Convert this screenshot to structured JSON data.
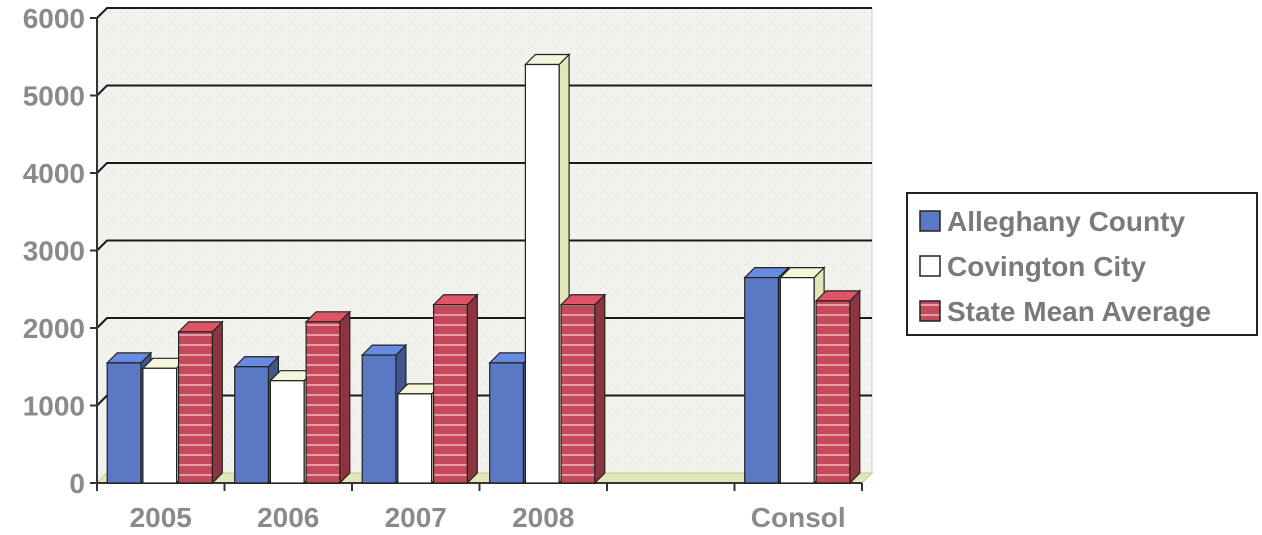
{
  "chart_data": {
    "type": "bar",
    "title": "",
    "xlabel": "",
    "ylabel": "",
    "ylim": [
      0,
      6000
    ],
    "yticks": [
      0,
      1000,
      2000,
      3000,
      4000,
      5000,
      6000
    ],
    "categories": [
      "2005",
      "2006",
      "2007",
      "2008",
      "",
      "Consol"
    ],
    "grid": true,
    "legend_position": "right",
    "series": [
      {
        "name": "Alleghany County",
        "color": "#5b78c4",
        "values": [
          1550,
          1500,
          1650,
          1550,
          null,
          2650
        ]
      },
      {
        "name": "Covington City",
        "color": "#ffffff",
        "values": [
          1480,
          1320,
          1150,
          5400,
          null,
          2650
        ]
      },
      {
        "name": "State Mean Average",
        "color": "#c24a5a",
        "values": [
          1950,
          2080,
          2300,
          2300,
          null,
          2350
        ]
      }
    ]
  }
}
